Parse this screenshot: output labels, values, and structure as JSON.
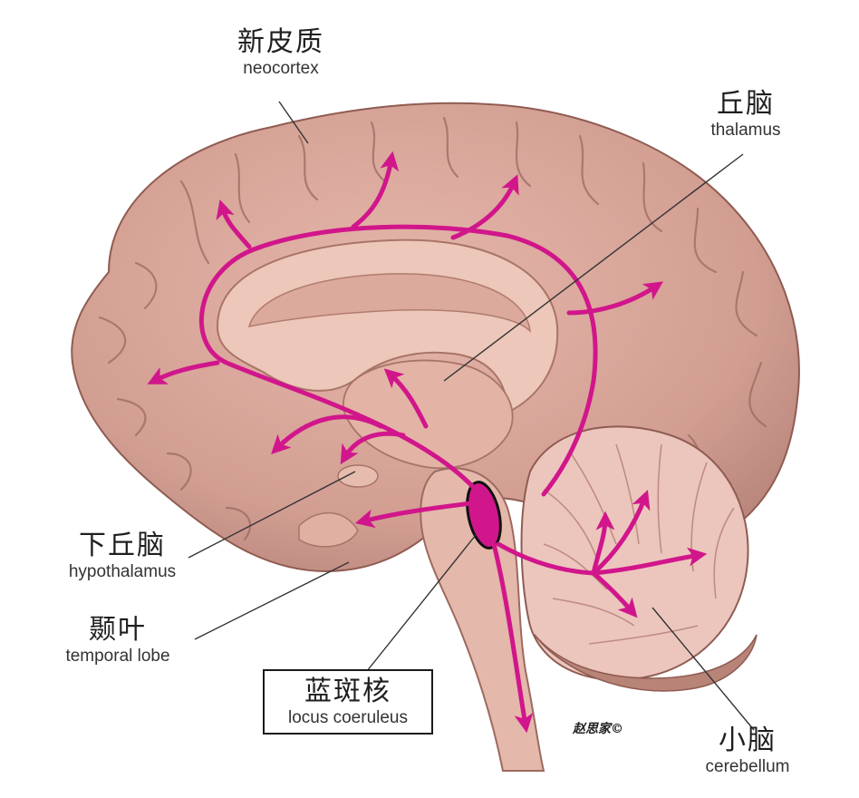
{
  "labels": {
    "neocortex": {
      "zh": "新皮质",
      "en": "neocortex"
    },
    "thalamus": {
      "zh": "丘脑",
      "en": "thalamus"
    },
    "hypothalamus": {
      "zh": "下丘脑",
      "en": "hypothalamus"
    },
    "temporal_lobe": {
      "zh": "颞叶",
      "en": "temporal lobe"
    },
    "locus_coeruleus": {
      "zh": "蓝斑核",
      "en": "locus coeruleus"
    },
    "cerebellum": {
      "zh": "小脑",
      "en": "cerebellum"
    }
  },
  "signature": "赵思家©",
  "colors": {
    "brain": "#d9a69b",
    "brain_dark": "#b98478",
    "brain_shadow": "#8f5c52",
    "inner": "#ecc4b6",
    "pathway": "#d1168c",
    "cerebellum": "#e8c4bc"
  }
}
